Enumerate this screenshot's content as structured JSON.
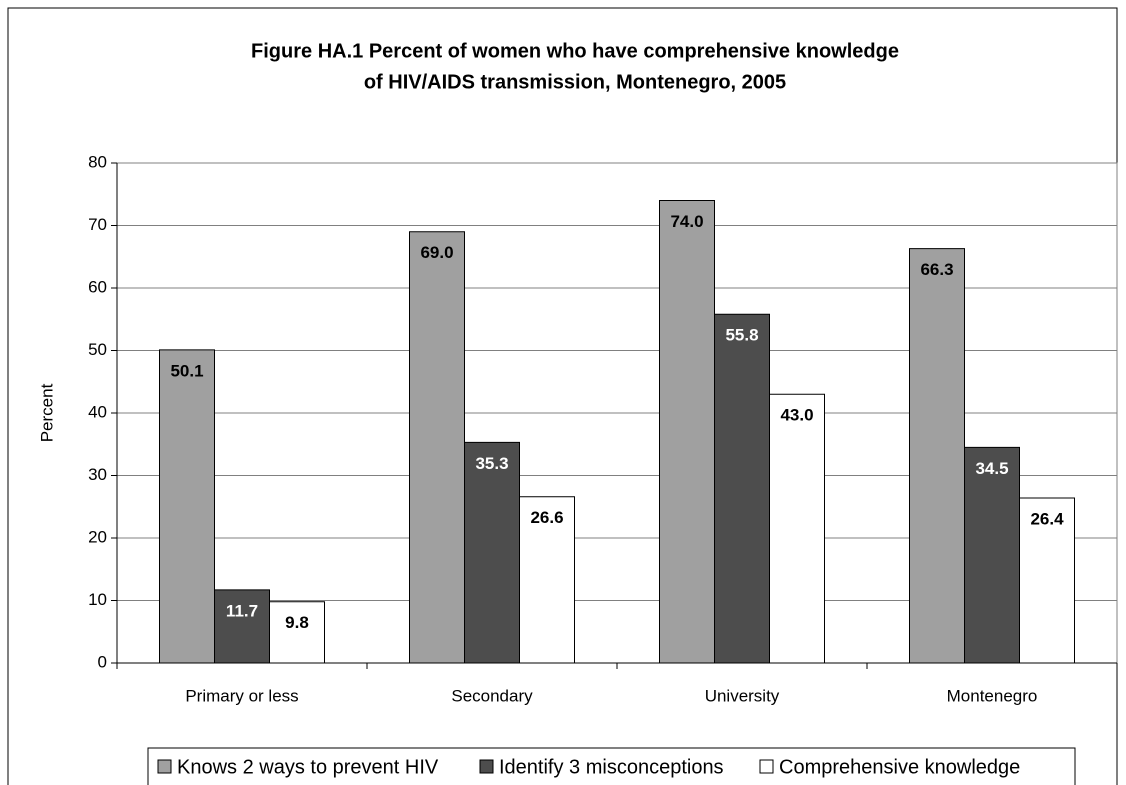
{
  "chart_data": {
    "type": "bar",
    "title": [
      "Figure HA.1 Percent of women who have comprehensive knowledge",
      "of HIV/AIDS transmission, Montenegro, 2005"
    ],
    "ylabel": "Percent",
    "categories": [
      "Primary or less",
      "Secondary",
      "University",
      "Montenegro"
    ],
    "series": [
      {
        "name": "Knows 2 ways to prevent HIV",
        "color": "#a0a0a0",
        "values": [
          50.1,
          69.0,
          74.0,
          66.3
        ],
        "value_labels": [
          "50.1",
          "69.0",
          "74.0",
          "66.3"
        ]
      },
      {
        "name": "Identify 3 misconceptions",
        "color": "#4d4d4d",
        "values": [
          11.7,
          35.3,
          55.8,
          34.5
        ],
        "value_labels": [
          "11.7",
          "35.3",
          "55.8",
          "34.5"
        ]
      },
      {
        "name": "Comprehensive knowledge",
        "color": "#ffffff",
        "values": [
          9.8,
          26.6,
          43.0,
          26.4
        ],
        "value_labels": [
          "9.8",
          "26.6",
          "43.0",
          "26.4"
        ]
      }
    ],
    "ylim": [
      0,
      80
    ],
    "yticks": [
      0,
      10,
      20,
      30,
      40,
      50,
      60,
      70,
      80
    ],
    "grid": true,
    "legend": "bottom"
  }
}
